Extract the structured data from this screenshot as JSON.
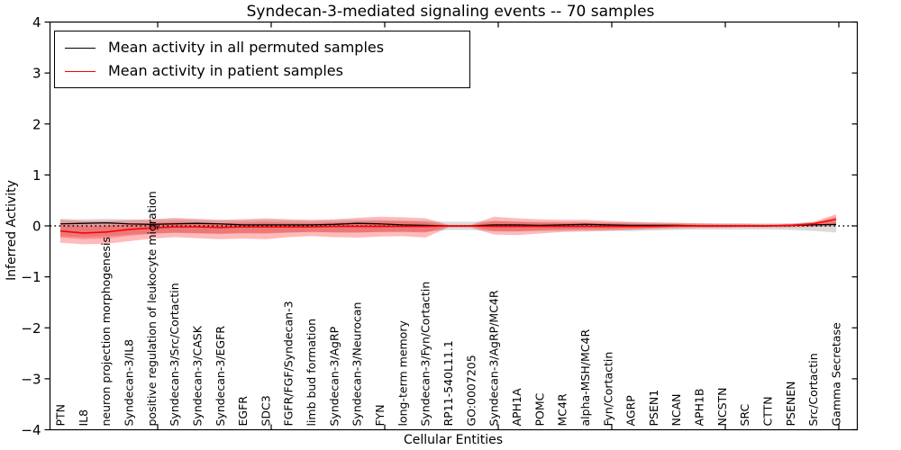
{
  "title": "Syndecan-3-mediated signaling events -- 70 samples",
  "axes": {
    "x_label": "Cellular Entities",
    "y_label": "Inferred Activity"
  },
  "legend": [
    {
      "label": "Mean activity in all permuted samples",
      "color": "#000000"
    },
    {
      "label": "Mean activity in patient samples",
      "color": "#ff0000"
    }
  ],
  "chart_data": {
    "type": "line",
    "title": "Syndecan-3-mediated signaling events -- 70 samples",
    "xlabel": "Cellular Entities",
    "ylabel": "Inferred Activity",
    "ylim": [
      -4,
      4
    ],
    "ytick_values": [
      4,
      3,
      2,
      1,
      0,
      -1,
      -2,
      -3,
      -4
    ],
    "ytick_labels": [
      "4",
      "3",
      "2",
      "1",
      "0",
      "−1",
      "−2",
      "−3",
      "−4"
    ],
    "grid": false,
    "legend_position": "upper left",
    "zero_line": {
      "y": 0,
      "style": "dotted",
      "color": "#000000"
    },
    "categories": [
      "PTN",
      "IL8",
      "neuron projection morphogenesis",
      "Syndecan-3/IL8",
      "positive regulation of leukocyte migration",
      "Syndecan-3/Src/Cortactin",
      "Syndecan-3/CASK",
      "Syndecan-3/EGFR",
      "EGFR",
      "SDC3",
      "FGFR/FGF/Syndecan-3",
      "limb bud formation",
      "Syndecan-3/AgRP",
      "Syndecan-3/Neurocan",
      "FYN",
      "long-term memory",
      "Syndecan-3/Fyn/Cortactin",
      "RP11-540L11.1",
      "GO:0007205",
      "Syndecan-3/AgRP/MC4R",
      "APH1A",
      "POMC",
      "MC4R",
      "alpha-MSH/MC4R",
      "Fyn/Cortactin",
      "AGRP",
      "PSEN1",
      "NCAN",
      "APH1B",
      "NCSTN",
      "SRC",
      "CTTN",
      "PSENEN",
      "Src/Cortactin",
      "Gamma Secretase"
    ],
    "series": [
      {
        "name": "Mean activity in all permuted samples",
        "color": "#000000",
        "values": [
          0.04,
          0.05,
          0.06,
          0.04,
          0.03,
          0.04,
          0.05,
          0.04,
          0.02,
          0.02,
          0.02,
          0.02,
          0.03,
          0.05,
          0.04,
          0.02,
          0.01,
          0.0,
          0.0,
          0.02,
          0.02,
          0.01,
          0.02,
          0.03,
          0.02,
          0.01,
          0.01,
          0.01,
          0.0,
          0.0,
          0.0,
          0.0,
          0.01,
          0.02,
          0.03
        ]
      },
      {
        "name": "Mean activity in patient samples",
        "color": "#ff0000",
        "values": [
          -0.1,
          -0.14,
          -0.12,
          -0.07,
          -0.04,
          -0.02,
          -0.02,
          -0.03,
          -0.02,
          -0.02,
          -0.02,
          -0.02,
          -0.01,
          -0.01,
          -0.01,
          -0.01,
          -0.01,
          0.0,
          0.0,
          -0.01,
          -0.01,
          -0.01,
          -0.01,
          -0.01,
          -0.01,
          -0.01,
          -0.01,
          0.0,
          0.0,
          0.0,
          0.0,
          0.0,
          0.01,
          0.04,
          0.13
        ]
      }
    ],
    "bands": [
      {
        "name": "permuted-samples-spread",
        "color": "#999999",
        "opacity": 0.35,
        "upper": [
          0.14,
          0.13,
          0.14,
          0.13,
          0.12,
          0.13,
          0.12,
          0.11,
          0.11,
          0.12,
          0.11,
          0.1,
          0.11,
          0.12,
          0.12,
          0.11,
          0.1,
          0.08,
          0.08,
          0.1,
          0.09,
          0.08,
          0.08,
          0.08,
          0.07,
          0.07,
          0.06,
          0.06,
          0.05,
          0.05,
          0.05,
          0.05,
          0.05,
          0.07,
          0.1
        ],
        "lower": [
          -0.2,
          -0.22,
          -0.2,
          -0.17,
          -0.15,
          -0.14,
          -0.15,
          -0.15,
          -0.14,
          -0.14,
          -0.13,
          -0.12,
          -0.13,
          -0.13,
          -0.12,
          -0.12,
          -0.12,
          -0.08,
          -0.08,
          -0.11,
          -0.11,
          -0.1,
          -0.1,
          -0.09,
          -0.09,
          -0.1,
          -0.09,
          -0.08,
          -0.07,
          -0.07,
          -0.07,
          -0.07,
          -0.08,
          -0.1,
          -0.13
        ]
      },
      {
        "name": "patient-samples-spread-outer",
        "color": "#ff0000",
        "opacity": 0.27,
        "upper": [
          0.12,
          0.1,
          0.1,
          0.11,
          0.13,
          0.16,
          0.14,
          0.12,
          0.13,
          0.15,
          0.13,
          0.12,
          0.13,
          0.16,
          0.18,
          0.17,
          0.15,
          0.02,
          0.02,
          0.18,
          0.15,
          0.13,
          0.12,
          0.12,
          0.1,
          0.08,
          0.07,
          0.06,
          0.05,
          0.04,
          0.04,
          0.03,
          0.04,
          0.08,
          0.23
        ],
        "lower": [
          -0.33,
          -0.36,
          -0.35,
          -0.3,
          -0.25,
          -0.22,
          -0.24,
          -0.26,
          -0.25,
          -0.26,
          -0.22,
          -0.2,
          -0.22,
          -0.23,
          -0.21,
          -0.2,
          -0.23,
          -0.03,
          -0.03,
          -0.17,
          -0.18,
          -0.15,
          -0.12,
          -0.11,
          -0.1,
          -0.08,
          -0.06,
          -0.05,
          -0.04,
          -0.04,
          -0.03,
          -0.03,
          -0.03,
          -0.02,
          0.0
        ]
      },
      {
        "name": "patient-samples-spread-inner",
        "color": "#ff0000",
        "opacity": 0.24,
        "factor_of_outer": 0.55
      }
    ]
  }
}
